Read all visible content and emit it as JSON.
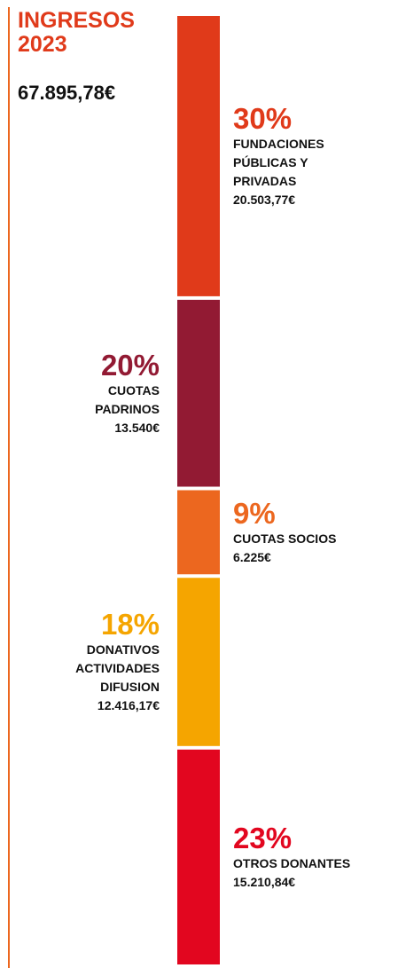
{
  "chart_data": {
    "type": "stacked_bar",
    "title": "INGRESOS 2023",
    "total": "67.895,78€",
    "ylim": [
      0,
      100
    ],
    "series": [
      {
        "name": "FUNDACIONES PÚBLICAS Y PRIVADAS",
        "color": "#e03a1a",
        "values": [
          30
        ],
        "value_labels": [
          "30%"
        ],
        "amount": "20.503,77€"
      },
      {
        "name": "CUOTAS PADRINOS",
        "color": "#921a33",
        "values": [
          20
        ],
        "value_labels": [
          "20%"
        ],
        "amount": "13.540€"
      },
      {
        "name": "CUOTAS SOCIOS",
        "color": "#ec671f",
        "values": [
          9
        ],
        "value_labels": [
          "9%"
        ],
        "amount": "6.225€"
      },
      {
        "name": "DONATIVOS ACTIVIDADES DIFUSION",
        "color": "#f5a500",
        "values": [
          18
        ],
        "value_labels": [
          "18%"
        ],
        "amount": "12.416,17€"
      },
      {
        "name": "OTROS DONANTES",
        "color": "#e2061f",
        "values": [
          23
        ],
        "value_labels": [
          "23%"
        ],
        "amount": "15.210,84€"
      }
    ]
  }
}
